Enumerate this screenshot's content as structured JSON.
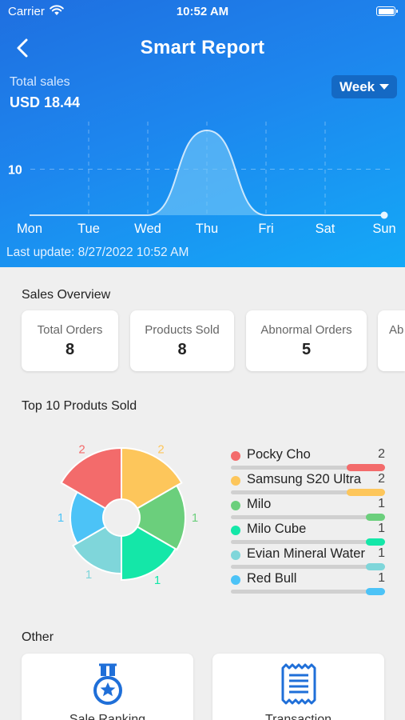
{
  "status_bar": {
    "carrier": "Carrier",
    "time": "10:52 AM"
  },
  "header": {
    "title": "Smart Report",
    "back_icon": "chevron-left-icon"
  },
  "summary": {
    "total_label": "Total sales",
    "total_value": "USD 18.44",
    "period": "Week"
  },
  "chart_data": {
    "type": "area",
    "categories": [
      "Mon",
      "Tue",
      "Wed",
      "Thu",
      "Fri",
      "Sat",
      "Sun"
    ],
    "values": [
      0,
      0,
      0,
      18.44,
      0,
      0,
      0
    ],
    "y_ticks": [
      "10"
    ],
    "ylim": [
      0,
      20
    ],
    "grid": "dashed",
    "fill_color": "#6fc3f7"
  },
  "last_update": "Last update: 8/27/2022 10:52 AM",
  "sales_overview": {
    "title": "Sales Overview",
    "cards": [
      {
        "label": "Total Orders",
        "value": "8"
      },
      {
        "label": "Products Sold",
        "value": "8"
      },
      {
        "label": "Abnormal Orders",
        "value": "5"
      },
      {
        "label": "Ab",
        "value": ""
      }
    ]
  },
  "top_products": {
    "title": "Top 10 Produts Sold",
    "items": [
      {
        "name": "Pocky Cho",
        "count": "2",
        "color": "#f36b6b"
      },
      {
        "name": "Samsung S20 Ultra",
        "count": "2",
        "color": "#fdc65b"
      },
      {
        "name": "Milo",
        "count": "1",
        "color": "#6bcf7c"
      },
      {
        "name": "Milo Cube",
        "count": "1",
        "color": "#14e7a8"
      },
      {
        "name": "Evian Mineral Water",
        "count": "1",
        "color": "#7fd6da"
      },
      {
        "name": "Red Bull",
        "count": "1",
        "color": "#4cc3f7"
      }
    ]
  },
  "other": {
    "title": "Other",
    "cards": [
      {
        "label": "Sale Ranking",
        "icon": "medal-icon"
      },
      {
        "label": "Transaction",
        "icon": "receipt-icon"
      }
    ]
  }
}
